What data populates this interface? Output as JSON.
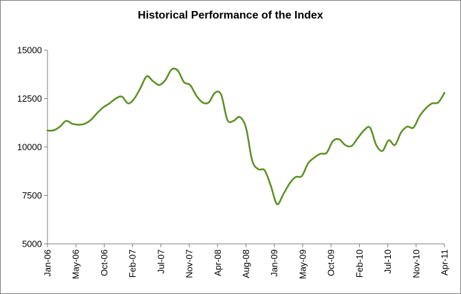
{
  "chart_data": {
    "type": "line",
    "title": "Historical Performance of the Index",
    "xlabel": "",
    "ylabel": "",
    "ylim": [
      5000,
      15000
    ],
    "yticks": [
      "15000",
      "12500",
      "10000",
      "7500",
      "5000"
    ],
    "ytick_values": [
      15000,
      12500,
      10000,
      7500,
      5000
    ],
    "xticks": [
      "Jan-06",
      "May-06",
      "Oct-06",
      "Feb-07",
      "Jul-07",
      "Nov-07",
      "Apr-08",
      "Aug-08",
      "Jan-09",
      "May-09",
      "Oct-09",
      "Feb-10",
      "Jul-10",
      "Nov-10",
      "Apr-11"
    ],
    "grid": false,
    "legend": "none",
    "line_color": "#5b8f22",
    "series": [
      {
        "values": [
          10850,
          10860,
          11050,
          11350,
          11200,
          11150,
          11200,
          11400,
          11750,
          12050,
          12250,
          12500,
          12600,
          12250,
          12500,
          13050,
          13650,
          13400,
          13200,
          13450,
          14000,
          13950,
          13350,
          13200,
          12650,
          12300,
          12300,
          12800,
          12700,
          11400,
          11350,
          11550,
          11000,
          9300,
          8850,
          8800,
          8000,
          7050,
          7550,
          8100,
          8450,
          8500,
          9150,
          9450,
          9650,
          9700,
          10300,
          10400,
          10100,
          10050,
          10450,
          10850,
          11000,
          10100,
          9800,
          10350,
          10100,
          10750,
          11050,
          11000,
          11600,
          12000,
          12250,
          12300,
          12800
        ]
      }
    ]
  }
}
